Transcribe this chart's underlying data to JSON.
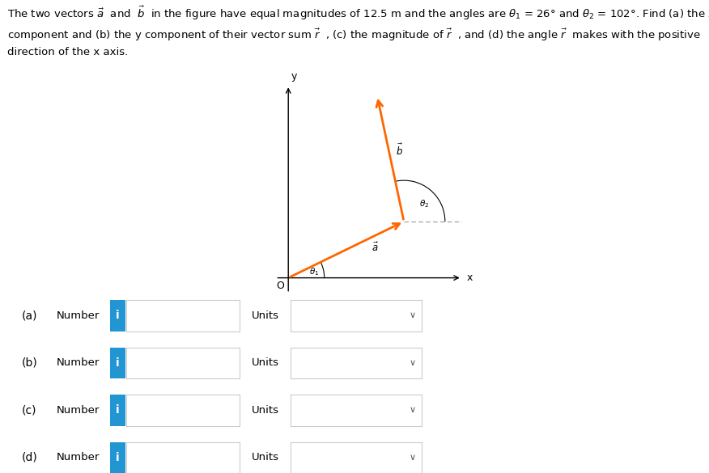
{
  "bg_color": "#ffffff",
  "text_color": "#000000",
  "arrow_color": "#FF6600",
  "dashed_color": "#999999",
  "axis_color": "#000000",
  "theta1_deg": 26,
  "theta2_deg": 102,
  "fig_width": 8.76,
  "fig_height": 5.85,
  "button_color": "#2196d3",
  "button_text": "i",
  "input_box_border": "#cccccc",
  "chevron_color": "#555555",
  "title_fontsize": 9.5,
  "label_fontsize": 10,
  "rows": [
    {
      "label": "(a)"
    },
    {
      "label": "(b)"
    },
    {
      "label": "(c)"
    },
    {
      "label": "(d)"
    }
  ]
}
